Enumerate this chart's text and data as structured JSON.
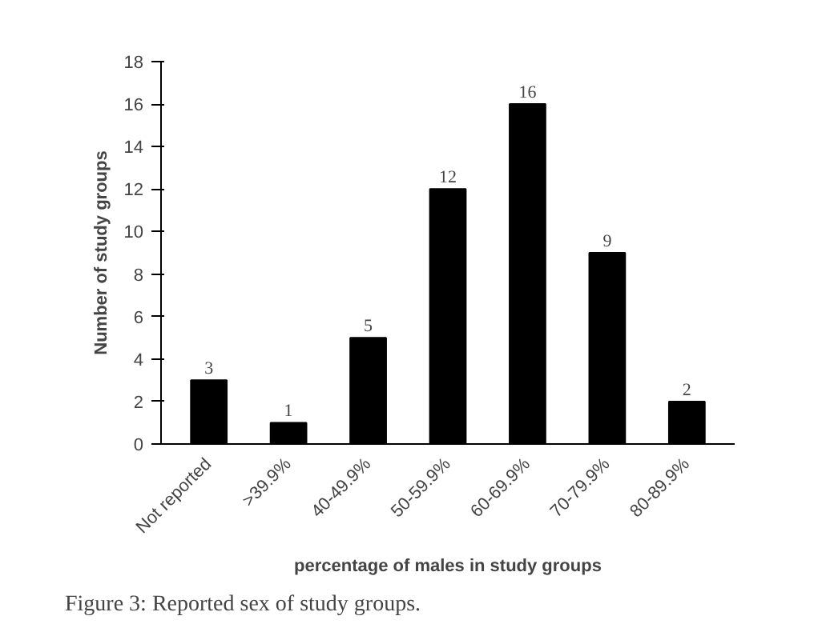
{
  "chart_data": {
    "type": "bar",
    "categories": [
      "Not reported",
      ">39.9%",
      "40-49.9%",
      "50-59.9%",
      "60-69.9%",
      "70-79.9%",
      "80-89.9%"
    ],
    "values": [
      3,
      1,
      5,
      12,
      16,
      9,
      2
    ],
    "color": "#000000",
    "ylim": [
      0,
      18
    ],
    "yticks": [
      0,
      2,
      4,
      6,
      8,
      10,
      12,
      14,
      16,
      18
    ],
    "ylabel": "Number of study groups",
    "xlabel": "percentage of males in study groups",
    "data_labels": true,
    "annotations": [
      "Figure 3: Reported sex of study groups."
    ]
  }
}
